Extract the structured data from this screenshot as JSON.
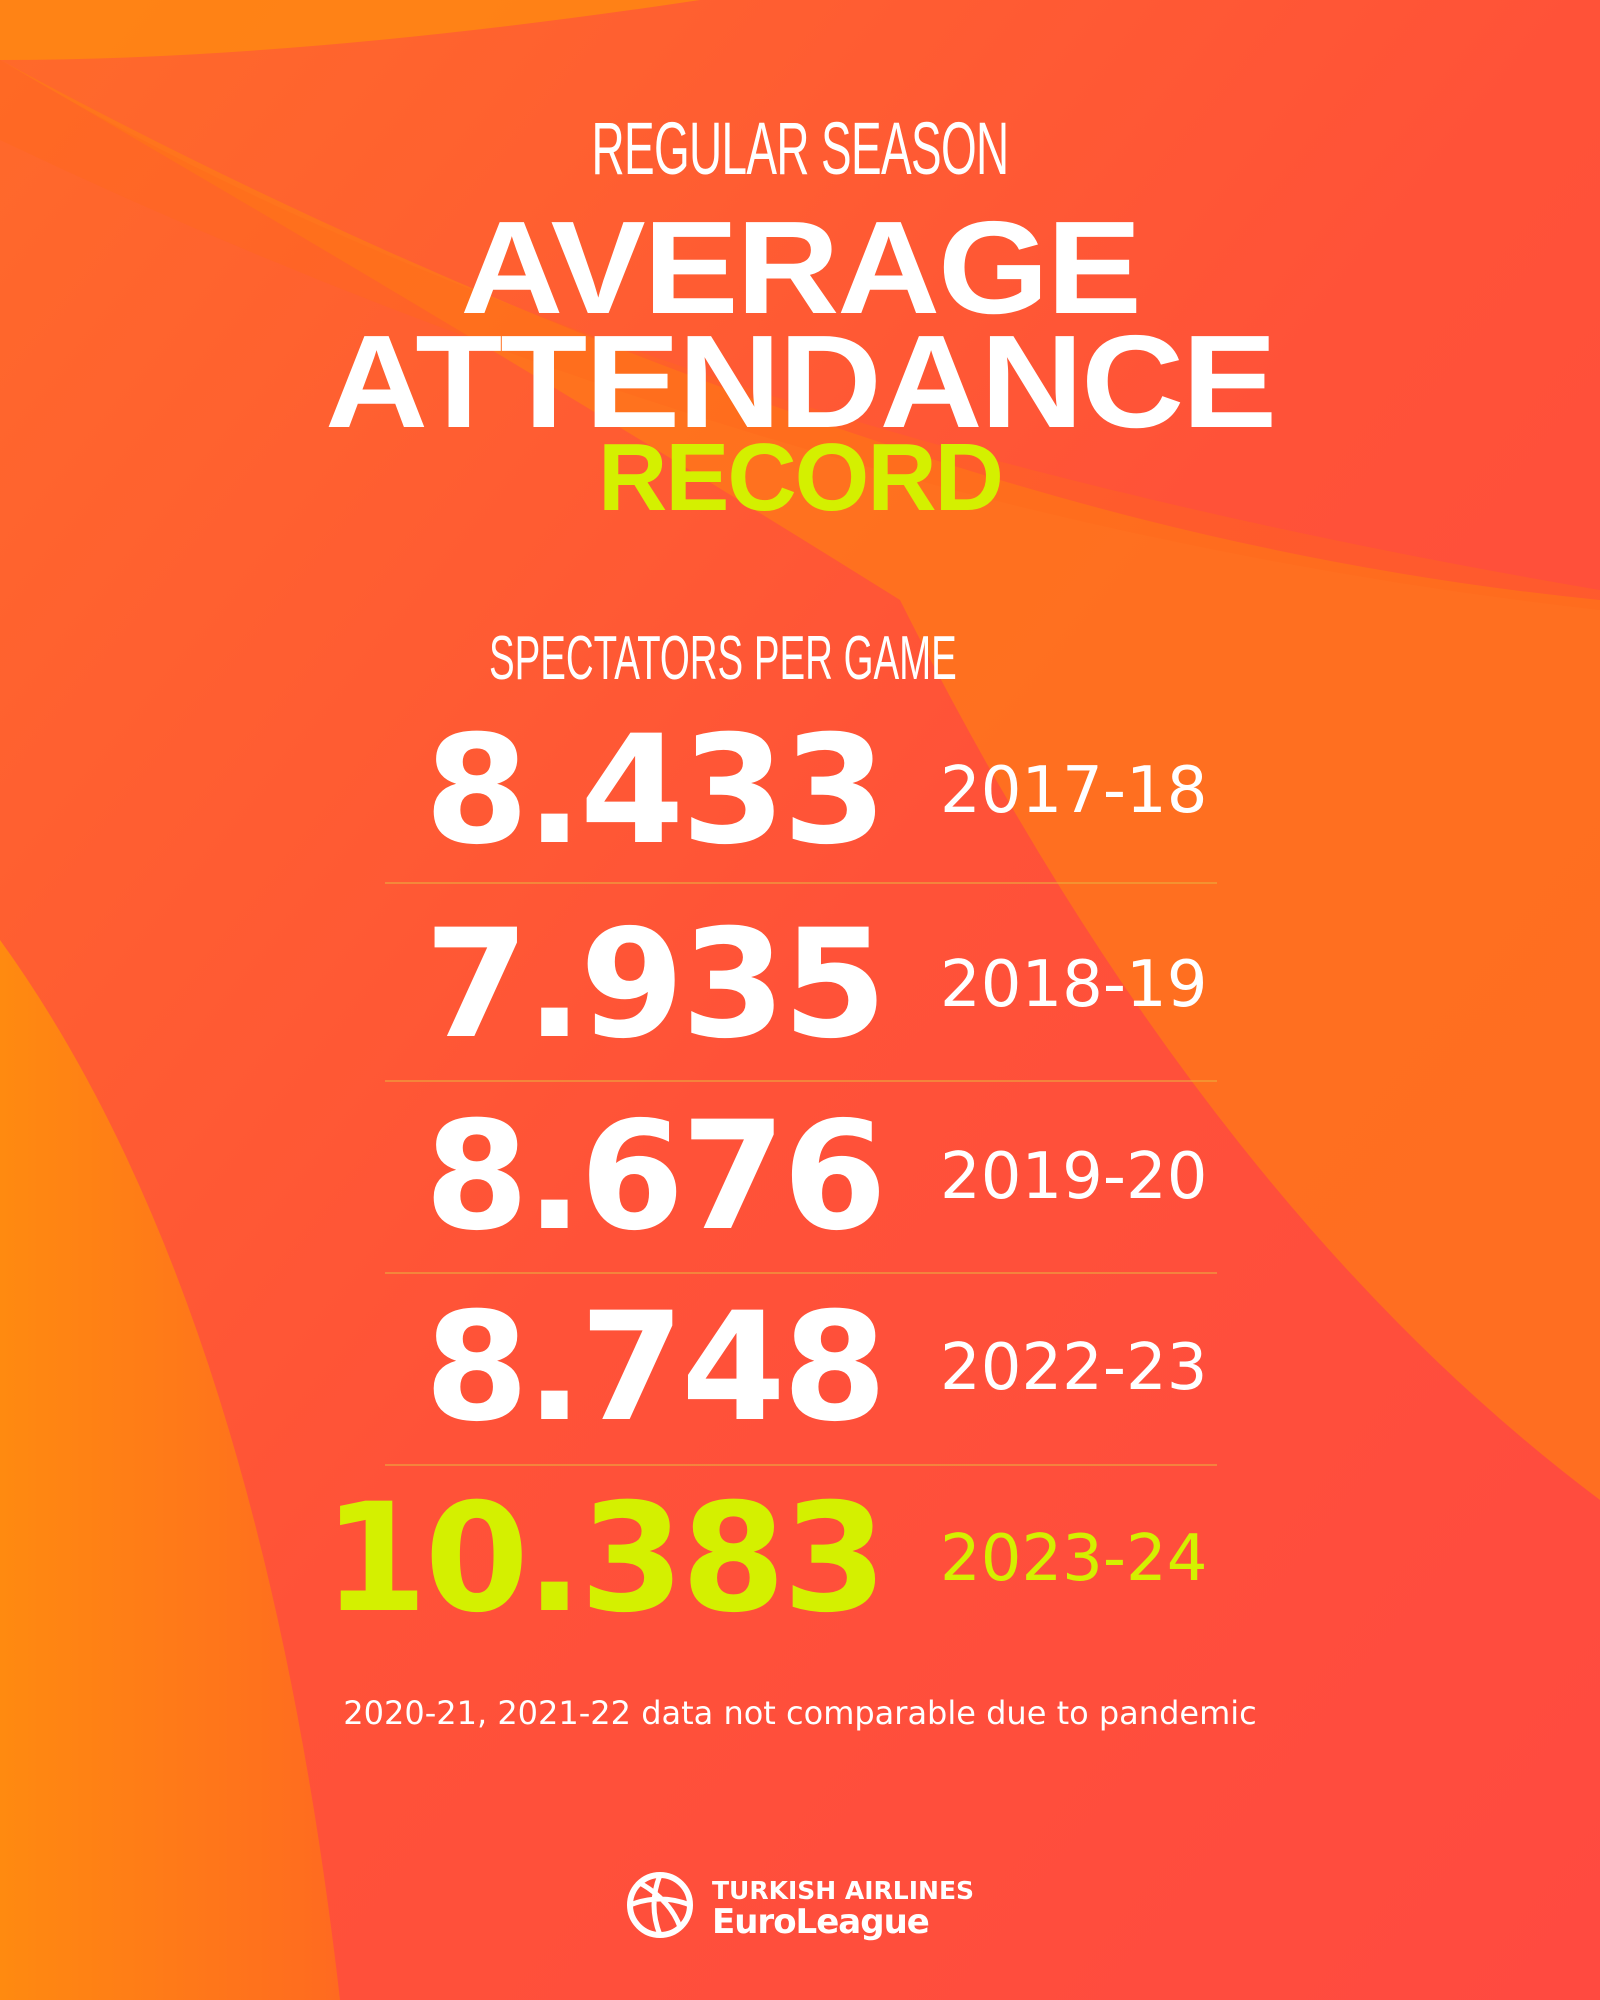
{
  "header": {
    "kicker": "REGULAR SEASON",
    "title_line1": "AVERAGE",
    "title_line2": "ATTENDANCE",
    "title_highlight": "RECORD"
  },
  "table": {
    "caption": "SPECTATORS PER GAME",
    "rows": [
      [
        "8.433",
        "2017-18"
      ],
      [
        "7.935",
        "2018-19"
      ],
      [
        "8.676",
        "2019-20"
      ],
      [
        "8.748",
        "2022-23"
      ],
      [
        "10.383",
        "2023-24"
      ]
    ]
  },
  "footnote": "2020-21, 2021-22 data not comparable due to pandemic",
  "logo": {
    "line1": "TURKISH AIRLINES",
    "line2": "EuroLeague"
  }
}
